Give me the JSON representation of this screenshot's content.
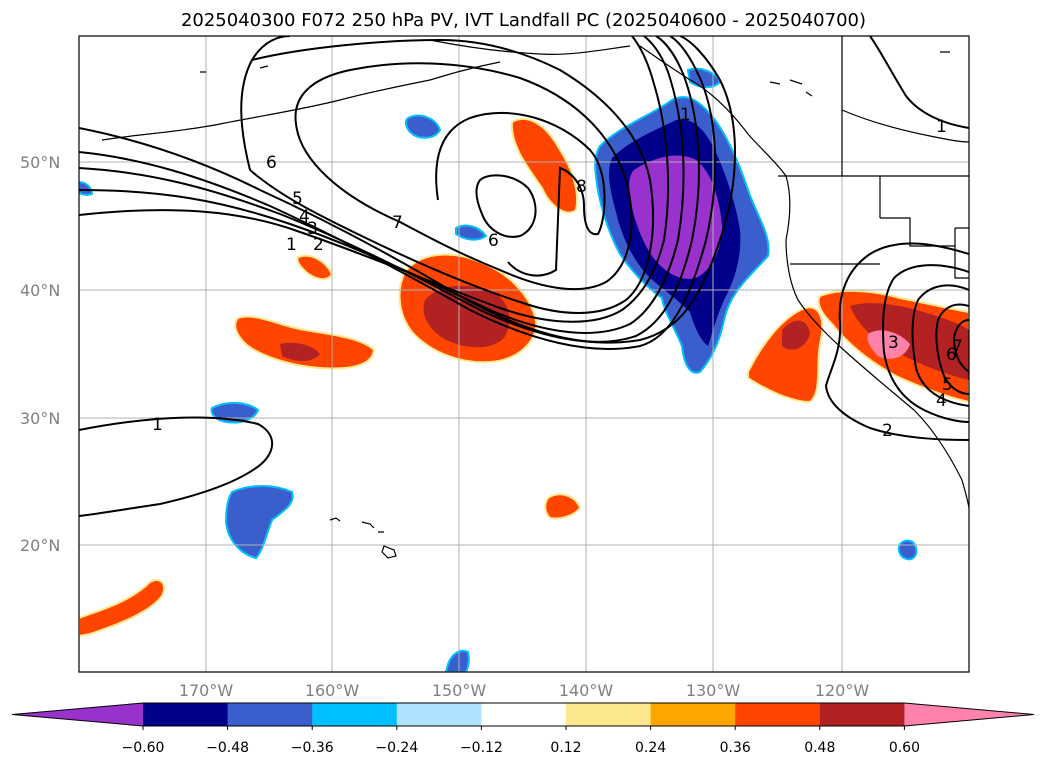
{
  "title": "2025040300 F072 250 hPa PV, IVT Landfall PC (2025040600 - 2025040700)",
  "lat_labels": [
    "50°N",
    "40°N",
    "30°N",
    "20°N"
  ],
  "lon_labels": [
    "170°W",
    "160°W",
    "150°W",
    "140°W",
    "130°W",
    "120°W"
  ],
  "colorbar": {
    "tick_labels": [
      "−0.60",
      "−0.48",
      "−0.36",
      "−0.24",
      "−0.12",
      "0.12",
      "0.24",
      "0.36",
      "0.48",
      "0.60"
    ],
    "colors": [
      "#9932cc",
      "#00008b",
      "#3a5fcd",
      "#00bfff",
      "#b0e2ff",
      "#ffffff",
      "#fde88f",
      "#ffa500",
      "#ff4500",
      "#b22222",
      "#ff82ab"
    ]
  },
  "pv_contour_labels": [
    "1",
    "2",
    "3",
    "4",
    "5",
    "6",
    "7",
    "8",
    "6",
    "1",
    "1",
    "2",
    "3",
    "4",
    "5",
    "6",
    "7",
    "1"
  ]
}
